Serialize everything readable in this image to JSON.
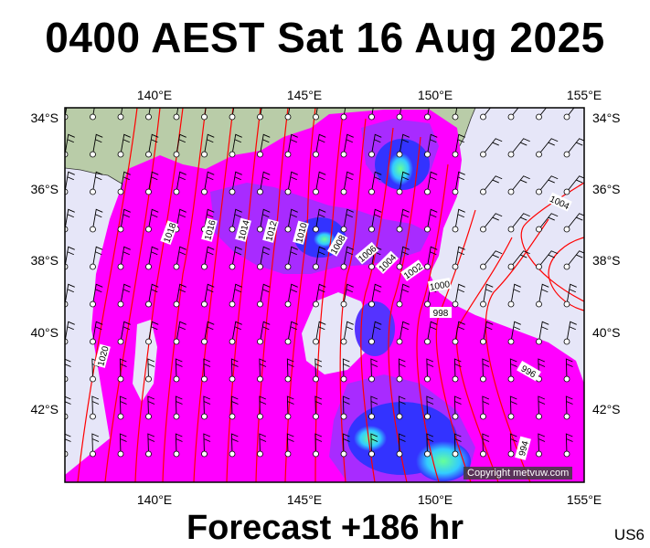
{
  "title": "0400 AEST Sat 16 Aug 2025",
  "footer": "Forecast +186 hr",
  "code": "US6",
  "copyright": "Copyright metvuw.com",
  "axes": {
    "lon_ticks": [
      "140°E",
      "145°E",
      "150°E",
      "155°E"
    ],
    "lat_ticks": [
      "34°S",
      "36°S",
      "38°S",
      "40°S",
      "42°S"
    ]
  },
  "colors": {
    "ocean": "#e6e6f8",
    "land": "#b9cca8",
    "rain_light": "#ff00ff",
    "rain_mid": "#9933ff",
    "rain_heavy": "#3333ff",
    "rain_core": "#33ffcc",
    "isobar": "#ff0000"
  },
  "isobar_labels": [
    "1018",
    "1016",
    "1014",
    "1012",
    "1010",
    "1008",
    "1006",
    "1004",
    "1002",
    "1000",
    "998",
    "996",
    "994",
    "1004",
    "1020"
  ]
}
